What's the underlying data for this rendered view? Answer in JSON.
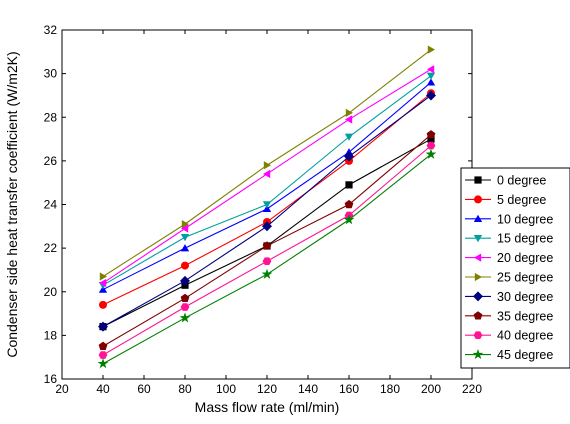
{
  "chart_data": {
    "type": "line",
    "title": "",
    "xlabel": "Mass flow rate (ml/min)",
    "ylabel": "Condenser side heat transfer coefficient (W/m2K)",
    "x": [
      40,
      80,
      120,
      160,
      200
    ],
    "xlim": [
      20,
      220
    ],
    "ylim": [
      16,
      32
    ],
    "x_ticks": [
      "20",
      "40",
      "60",
      "80",
      "100",
      "120",
      "140",
      "160",
      "180",
      "200",
      "220"
    ],
    "y_ticks": [
      "16",
      "18",
      "20",
      "22",
      "24",
      "26",
      "28",
      "30",
      "32"
    ],
    "grid": false,
    "legend_position": "right",
    "series": [
      {
        "name": "0 degree",
        "color": "#000000",
        "marker": "square",
        "values": [
          18.4,
          20.3,
          22.1,
          24.9,
          27.0
        ]
      },
      {
        "name": "5 degree",
        "color": "#ff0000",
        "marker": "circle",
        "values": [
          19.4,
          21.2,
          23.2,
          26.0,
          29.1
        ]
      },
      {
        "name": "10 degree",
        "color": "#0000ff",
        "marker": "triangle-up",
        "values": [
          20.1,
          22.0,
          23.8,
          26.4,
          29.6
        ]
      },
      {
        "name": "15 degree",
        "color": "#00a0a0",
        "marker": "triangle-down",
        "values": [
          20.3,
          22.5,
          24.0,
          27.1,
          29.9
        ]
      },
      {
        "name": "20 degree",
        "color": "#ff00ff",
        "marker": "triangle-left",
        "values": [
          20.4,
          22.9,
          25.4,
          27.9,
          30.2
        ]
      },
      {
        "name": "25 degree",
        "color": "#808000",
        "marker": "triangle-right",
        "values": [
          20.7,
          23.1,
          25.8,
          28.2,
          31.1
        ]
      },
      {
        "name": "30 degree",
        "color": "#000080",
        "marker": "diamond",
        "values": [
          18.4,
          20.5,
          23.0,
          26.2,
          29.0
        ]
      },
      {
        "name": "35 degree",
        "color": "#800000",
        "marker": "pentagon",
        "values": [
          17.5,
          19.7,
          22.1,
          24.0,
          27.2
        ]
      },
      {
        "name": "40 degree",
        "color": "#ff1493",
        "marker": "hexagon",
        "values": [
          17.1,
          19.3,
          21.4,
          23.5,
          26.7
        ]
      },
      {
        "name": "45 degree",
        "color": "#008000",
        "marker": "star",
        "values": [
          16.7,
          18.8,
          20.8,
          23.3,
          26.3
        ]
      }
    ]
  }
}
